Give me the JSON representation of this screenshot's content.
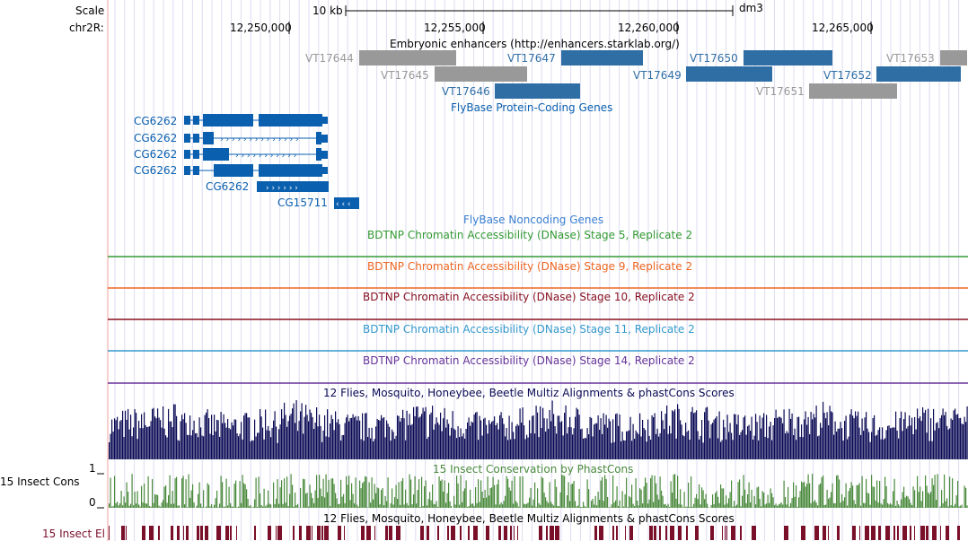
{
  "scale": {
    "label": "Scale",
    "bar_text": "10 kb",
    "assembly": "dm3"
  },
  "ruler": {
    "chrom_label": "chr2R:",
    "ticks": [
      "12,250,000",
      "12,255,000",
      "12,260,000",
      "12,265,000"
    ]
  },
  "enhancers": {
    "title": "Embryonic enhancers (http://enhancers.starklab.org/)",
    "items": [
      {
        "name": "VT17644",
        "color": "gray"
      },
      {
        "name": "VT17645",
        "color": "gray"
      },
      {
        "name": "VT17646",
        "color": "blue"
      },
      {
        "name": "VT17647",
        "color": "blue"
      },
      {
        "name": "VT17649",
        "color": "blue"
      },
      {
        "name": "VT17650",
        "color": "blue"
      },
      {
        "name": "VT17651",
        "color": "gray"
      },
      {
        "name": "VT17652",
        "color": "blue"
      },
      {
        "name": "VT17653",
        "color": "gray"
      }
    ]
  },
  "genes": {
    "title": "FlyBase Protein-Coding Genes",
    "items": [
      "CG6262",
      "CG6262",
      "CG6262",
      "CG6262",
      "CG6262",
      "CG15711"
    ]
  },
  "noncoding": {
    "title": "FlyBase Noncoding Genes"
  },
  "dnase": [
    {
      "title": "BDTNP Chromatin Accessibility (DNase) Stage 5, Replicate 2",
      "color": "#339933"
    },
    {
      "title": "BDTNP Chromatin Accessibility (DNase) Stage 9, Replicate 2",
      "color": "#ee6622"
    },
    {
      "title": "BDTNP Chromatin Accessibility (DNase) Stage 10, Replicate 2",
      "color": "#881122"
    },
    {
      "title": "BDTNP Chromatin Accessibility (DNase) Stage 11, Replicate 2",
      "color": "#3399cc"
    },
    {
      "title": "BDTNP Chromatin Accessibility (DNase) Stage 14, Replicate 2",
      "color": "#663399"
    }
  ],
  "multiz": {
    "title": "12 Flies, Mosquito, Honeybee, Beetle Multiz Alignments & phastCons Scores",
    "color": "#0a0a55"
  },
  "phastcons": {
    "title": "15 Insect Conservation by PhastCons",
    "side_label": "15 Insect Cons",
    "axis_max": "1",
    "axis_min": "0",
    "color": "#4a8a3c"
  },
  "elements": {
    "title": "12 Flies, Mosquito, Honeybee, Beetle Multiz Alignments & phastCons Scores",
    "side_label": "15 Insect El",
    "color": "#7a0f2a"
  },
  "colors": {
    "gene_blue": "#0a5fae",
    "enh_blue": "#2f6ea5",
    "enh_gray": "#999999",
    "grid": "#d8d8f0",
    "left_border": "#e08080"
  }
}
